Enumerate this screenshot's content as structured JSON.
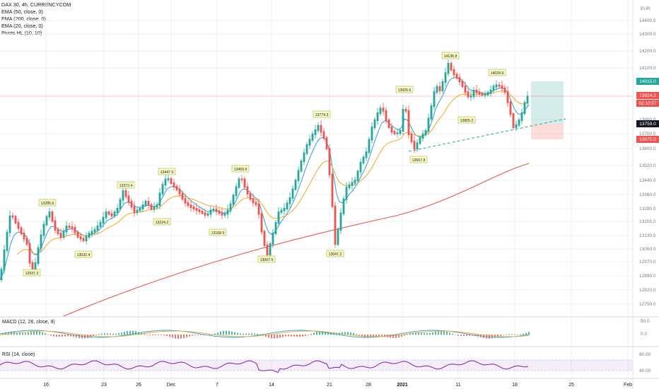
{
  "header": {
    "symbol": "DAX 30, 4h, CURRENCYCOM",
    "indicators": [
      "EMA (50, close, 0)",
      "EMA (200, close, 0)",
      "EMA (20, close, 0)",
      "Pivots HL (10, 10)"
    ]
  },
  "axis": {
    "currency": "EUR",
    "price_ticks": [
      "14400.0",
      "14300.0",
      "14200.0",
      "14100.0",
      "13800.0",
      "13700.0",
      "13600.0",
      "13520.0",
      "13440.0",
      "13360.0",
      "13280.0",
      "13205.0",
      "13130.0",
      "13050.0",
      "12970.0",
      "12890.0",
      "12820.0",
      "12750.0"
    ],
    "price_tags": [
      {
        "text": "14015.0",
        "bg": "#26a69a"
      },
      {
        "text": "13924.2",
        "bg": "#ef5350"
      },
      {
        "text": "02:10:57",
        "bg": "#ef5350"
      },
      {
        "text": "13759.0",
        "bg": "#131722"
      },
      {
        "text": "13675.0",
        "bg": "#ef5350"
      }
    ],
    "time_ticks": [
      "16",
      "23",
      "26",
      "Dec",
      "7",
      "14",
      "21",
      "28",
      "2021",
      "11",
      "18",
      "25",
      "Feb"
    ]
  },
  "pivots": [
    "13285.6",
    "12937.3",
    "13032.4",
    "13372.4",
    "13224.2",
    "13447.0",
    "13168.9",
    "13459.9",
    "13067.5",
    "13779.3",
    "13047.2",
    "13925.6",
    "13667.8",
    "14136.8",
    "13805.2",
    "14029.9"
  ],
  "macd": {
    "label": "MACD (12, 26, close, 9)",
    "ticks": [
      "50.0",
      "0.0"
    ]
  },
  "rsi": {
    "label": "RSI (14, close)",
    "ticks": [
      "80.00",
      "40.00"
    ]
  },
  "colors": {
    "up": "#26a69a",
    "down": "#ef5350",
    "ema20": "#2aa0d9",
    "ema50": "#f5a623",
    "ema200": "#e8574d",
    "rsi": "#7e1fa8",
    "grid": "#eef0f3"
  }
}
